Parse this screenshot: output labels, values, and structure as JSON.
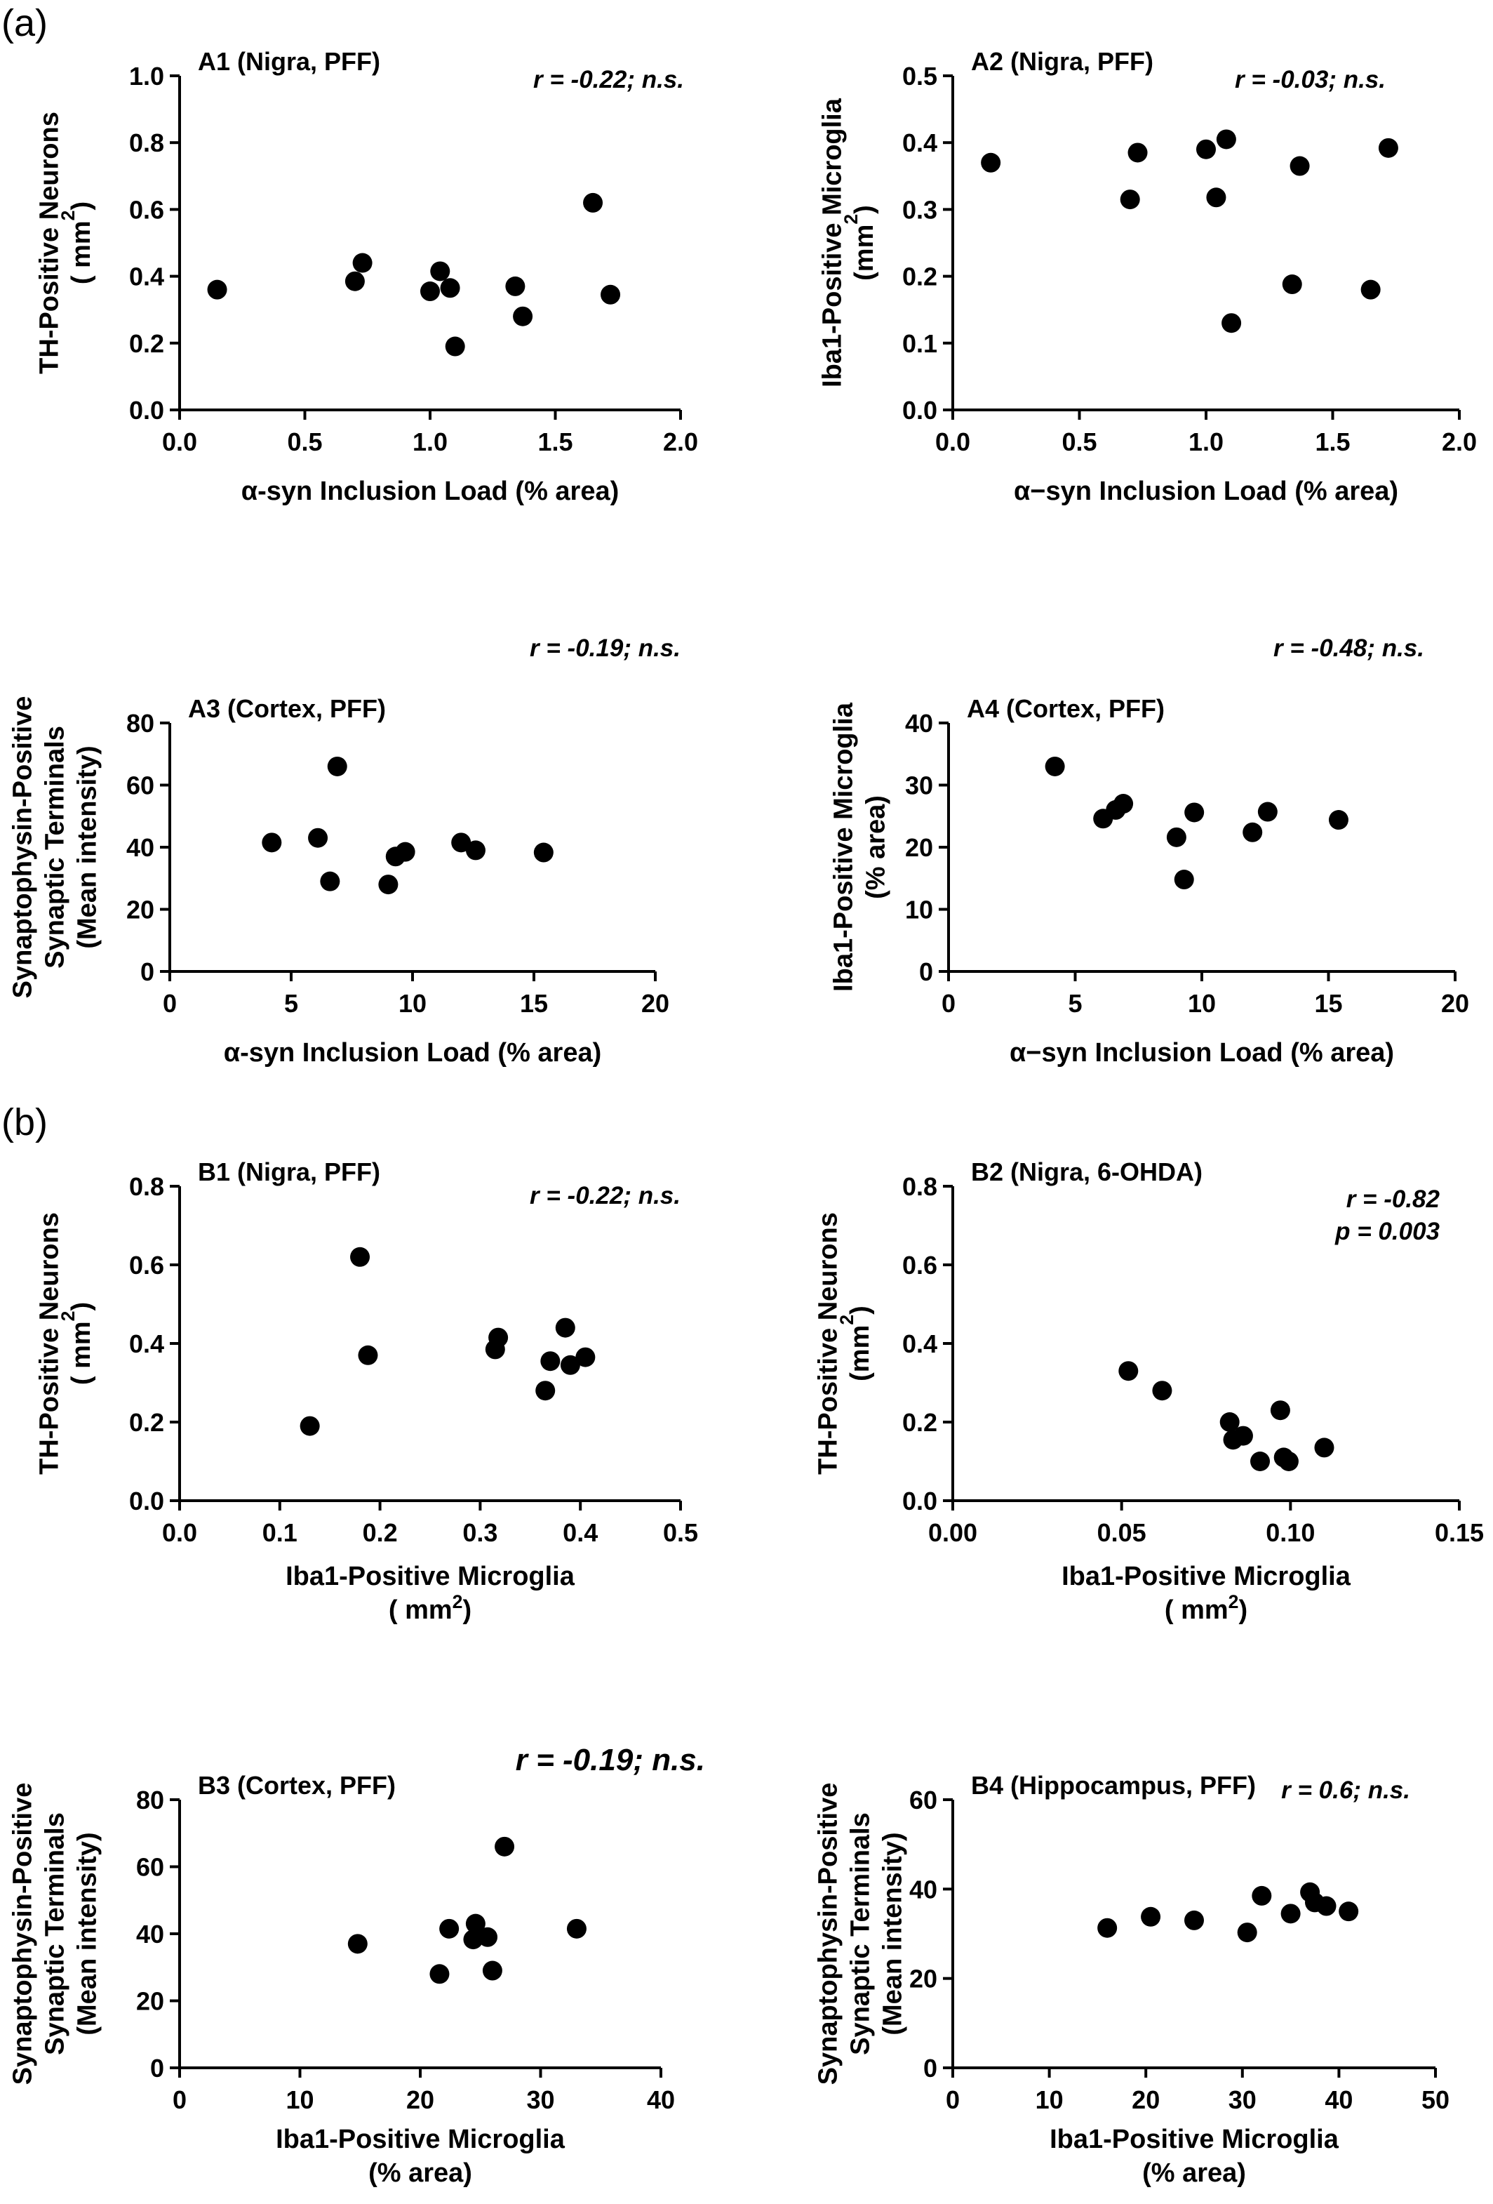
{
  "figure": {
    "section_labels": [
      "(a)",
      "(b)"
    ]
  },
  "chart_data": [
    {
      "id": "A1",
      "type": "scatter",
      "title": "A1 (Nigra, PFF)",
      "annotation": [
        "r = -0.22; n.s."
      ],
      "xlabel": [
        "α-syn Inclusion Load (% area)"
      ],
      "ylabel": [
        "TH-Positive Neurons",
        "( mm²)"
      ],
      "xlim": [
        0,
        2.0
      ],
      "ylim": [
        0,
        1.0
      ],
      "xticks": [
        "0.0",
        "0.5",
        "1.0",
        "1.5",
        "2.0"
      ],
      "yticks": [
        "0.0",
        "0.2",
        "0.4",
        "0.6",
        "0.8",
        "1.0"
      ],
      "points": [
        [
          0.15,
          0.36
        ],
        [
          0.7,
          0.385
        ],
        [
          0.73,
          0.44
        ],
        [
          1.0,
          0.355
        ],
        [
          1.04,
          0.415
        ],
        [
          1.08,
          0.365
        ],
        [
          1.1,
          0.19
        ],
        [
          1.34,
          0.37
        ],
        [
          1.37,
          0.28
        ],
        [
          1.65,
          0.62
        ],
        [
          1.72,
          0.345
        ]
      ]
    },
    {
      "id": "A2",
      "type": "scatter",
      "title": "A2 (Nigra, PFF)",
      "annotation": [
        "r = -0.03; n.s."
      ],
      "xlabel": [
        "α−syn Inclusion Load (% area)"
      ],
      "ylabel": [
        "Iba1-Positive Microglia",
        "(mm²)"
      ],
      "xlim": [
        0,
        2.0
      ],
      "ylim": [
        0,
        0.5
      ],
      "xticks": [
        "0.0",
        "0.5",
        "1.0",
        "1.5",
        "2.0"
      ],
      "yticks": [
        "0.0",
        "0.1",
        "0.2",
        "0.3",
        "0.4",
        "0.5"
      ],
      "points": [
        [
          0.15,
          0.37
        ],
        [
          0.7,
          0.315
        ],
        [
          0.73,
          0.385
        ],
        [
          1.0,
          0.39
        ],
        [
          1.04,
          0.318
        ],
        [
          1.08,
          0.405
        ],
        [
          1.1,
          0.13
        ],
        [
          1.34,
          0.188
        ],
        [
          1.37,
          0.365
        ],
        [
          1.65,
          0.18
        ],
        [
          1.72,
          0.392
        ]
      ]
    },
    {
      "id": "A3",
      "type": "scatter",
      "title": "A3 (Cortex, PFF)",
      "annotation": [
        "r = -0.19; n.s."
      ],
      "xlabel": [
        "α-syn Inclusion Load (% area)"
      ],
      "ylabel": [
        "Synaptophysin-Positive",
        "Synaptic Terminals",
        "(Mean intensity)"
      ],
      "xlim": [
        0,
        20
      ],
      "ylim": [
        0,
        80
      ],
      "xticks": [
        "0",
        "5",
        "10",
        "15",
        "20"
      ],
      "yticks": [
        "0",
        "20",
        "40",
        "60",
        "80"
      ],
      "points": [
        [
          4.2,
          41.5
        ],
        [
          6.1,
          43
        ],
        [
          6.6,
          29
        ],
        [
          6.9,
          66
        ],
        [
          9.0,
          28
        ],
        [
          9.3,
          37
        ],
        [
          9.7,
          38.5
        ],
        [
          12.0,
          41.5
        ],
        [
          12.6,
          39
        ],
        [
          15.4,
          38.3
        ]
      ]
    },
    {
      "id": "A4",
      "type": "scatter",
      "title": "A4 (Cortex, PFF)",
      "annotation": [
        "r = -0.48; n.s."
      ],
      "xlabel": [
        "α−syn Inclusion Load (% area)"
      ],
      "ylabel": [
        "Iba1-Positive Microglia",
        "(% area)"
      ],
      "xlim": [
        0,
        20
      ],
      "ylim": [
        0,
        40
      ],
      "xticks": [
        "0",
        "5",
        "10",
        "15",
        "20"
      ],
      "yticks": [
        "0",
        "10",
        "20",
        "30",
        "40"
      ],
      "points": [
        [
          4.2,
          33
        ],
        [
          6.1,
          24.6
        ],
        [
          6.6,
          26
        ],
        [
          6.9,
          27
        ],
        [
          9.0,
          21.6
        ],
        [
          9.3,
          14.8
        ],
        [
          9.7,
          25.6
        ],
        [
          12.0,
          22.4
        ],
        [
          12.6,
          25.7
        ],
        [
          15.4,
          24.4
        ]
      ]
    },
    {
      "id": "B1",
      "type": "scatter",
      "title": "B1 (Nigra, PFF)",
      "annotation": [
        "r = -0.22; n.s."
      ],
      "xlabel": [
        "Iba1-Positive Microglia",
        "( mm²)"
      ],
      "ylabel": [
        "TH-Positive Neurons",
        "( mm²)"
      ],
      "xlim": [
        0,
        0.5
      ],
      "ylim": [
        0,
        0.8
      ],
      "xticks": [
        "0.0",
        "0.1",
        "0.2",
        "0.3",
        "0.4",
        "0.5"
      ],
      "yticks": [
        "0.0",
        "0.2",
        "0.4",
        "0.6",
        "0.8"
      ],
      "points": [
        [
          0.13,
          0.19
        ],
        [
          0.18,
          0.62
        ],
        [
          0.188,
          0.37
        ],
        [
          0.315,
          0.385
        ],
        [
          0.318,
          0.415
        ],
        [
          0.365,
          0.28
        ],
        [
          0.37,
          0.355
        ],
        [
          0.385,
          0.44
        ],
        [
          0.39,
          0.345
        ],
        [
          0.405,
          0.365
        ]
      ]
    },
    {
      "id": "B2",
      "type": "scatter",
      "title": "B2 (Nigra, 6-OHDA)",
      "annotation": [
        "r = -0.82",
        "p = 0.003"
      ],
      "xlabel": [
        "Iba1-Positive Microglia",
        "( mm²)"
      ],
      "ylabel": [
        "TH-Positive Neurons",
        "(mm²)"
      ],
      "xlim": [
        0,
        0.15
      ],
      "ylim": [
        0,
        0.8
      ],
      "xticks": [
        "0.00",
        "0.05",
        "0.10",
        "0.15"
      ],
      "yticks": [
        "0.0",
        "0.2",
        "0.4",
        "0.6",
        "0.8"
      ],
      "points": [
        [
          0.052,
          0.33
        ],
        [
          0.062,
          0.28
        ],
        [
          0.082,
          0.2
        ],
        [
          0.083,
          0.155
        ],
        [
          0.086,
          0.165
        ],
        [
          0.091,
          0.1
        ],
        [
          0.097,
          0.23
        ],
        [
          0.098,
          0.11
        ],
        [
          0.0995,
          0.1
        ],
        [
          0.11,
          0.135
        ]
      ]
    },
    {
      "id": "B3",
      "type": "scatter",
      "title": "B3 (Cortex, PFF)",
      "annotation": [
        "r = -0.19; n.s."
      ],
      "xlabel": [
        "Iba1-Positive Microglia",
        "(% area)"
      ],
      "ylabel": [
        "Synaptophysin-Positive",
        "Synaptic Terminals",
        "(Mean intensity)"
      ],
      "xlim": [
        0,
        40
      ],
      "ylim": [
        0,
        80
      ],
      "xticks": [
        "0",
        "10",
        "20",
        "30",
        "40"
      ],
      "yticks": [
        "0",
        "20",
        "40",
        "60",
        "80"
      ],
      "points": [
        [
          14.8,
          37
        ],
        [
          21.6,
          28
        ],
        [
          22.4,
          41.5
        ],
        [
          24.4,
          38.3
        ],
        [
          24.6,
          43
        ],
        [
          25.6,
          39
        ],
        [
          26.0,
          29
        ],
        [
          27.0,
          66
        ],
        [
          33.0,
          41.5
        ]
      ]
    },
    {
      "id": "B4",
      "type": "scatter",
      "title": "B4 (Hippocampus, PFF)",
      "annotation": [
        "r = 0.6; n.s."
      ],
      "xlabel": [
        "Iba1-Positive Microglia",
        "(% area)"
      ],
      "ylabel": [
        "Synaptophysin-Positive",
        "Synaptic Terminals",
        "(Mean intensity)"
      ],
      "xlim": [
        0,
        50
      ],
      "ylim": [
        0,
        60
      ],
      "xticks": [
        "0",
        "10",
        "20",
        "30",
        "40",
        "50"
      ],
      "yticks": [
        "0",
        "20",
        "40",
        "60"
      ],
      "points": [
        [
          16,
          31.3
        ],
        [
          20.5,
          33.8
        ],
        [
          25,
          33
        ],
        [
          30.5,
          30.3
        ],
        [
          32,
          38.5
        ],
        [
          35,
          34.5
        ],
        [
          37,
          39.3
        ],
        [
          37.5,
          37
        ],
        [
          38.7,
          36.2
        ],
        [
          41,
          35
        ]
      ]
    }
  ]
}
